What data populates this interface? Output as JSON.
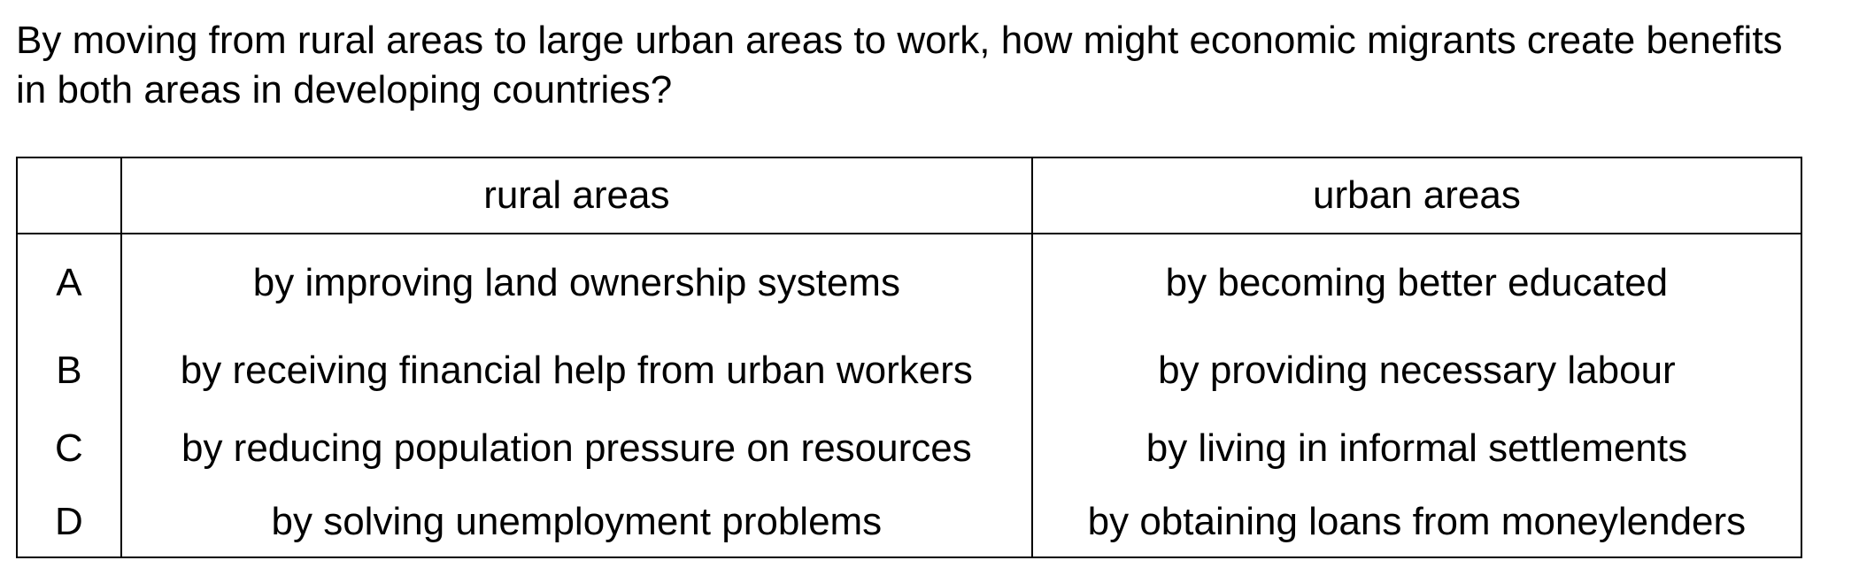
{
  "question": {
    "text": "By moving from rural areas to large urban areas to work, how might economic migrants create benefits in both areas in developing countries?"
  },
  "table": {
    "headers": [
      "",
      "rural areas",
      "urban areas"
    ],
    "rows": [
      {
        "letter": "A",
        "rural": "by improving land ownership systems",
        "urban": "by becoming better educated"
      },
      {
        "letter": "B",
        "rural": "by receiving financial help from urban workers",
        "urban": "by providing necessary labour"
      },
      {
        "letter": "C",
        "rural": "by reducing population pressure on resources",
        "urban": "by living in informal settlements"
      },
      {
        "letter": "D",
        "rural": "by solving unemployment problems",
        "urban": "by obtaining loans from moneylenders"
      }
    ]
  }
}
